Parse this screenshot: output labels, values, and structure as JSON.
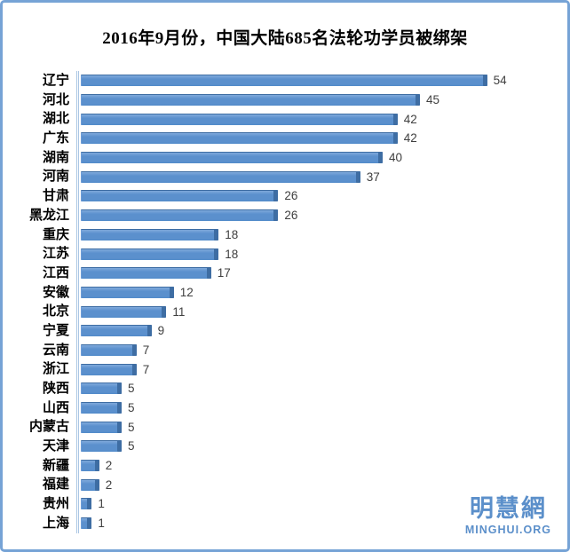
{
  "chart_data": {
    "type": "bar",
    "orientation": "horizontal",
    "title": "2016年9月份，中国大陆685名法轮功学员被绑架",
    "categories": [
      "辽宁",
      "河北",
      "湖北",
      "广东",
      "湖南",
      "河南",
      "甘肃",
      "黑龙江",
      "重庆",
      "江苏",
      "江西",
      "安徽",
      "北京",
      "宁夏",
      "云南",
      "浙江",
      "陕西",
      "山西",
      "内蒙古",
      "天津",
      "新疆",
      "福建",
      "贵州",
      "上海"
    ],
    "values": [
      54,
      45,
      42,
      42,
      40,
      37,
      26,
      26,
      18,
      18,
      17,
      12,
      11,
      9,
      7,
      7,
      5,
      5,
      5,
      5,
      2,
      2,
      1,
      1
    ],
    "xlabel": "",
    "ylabel": "",
    "xlim": [
      0,
      54
    ],
    "grid": false,
    "legend": false,
    "value_labels_shown": true,
    "bar_color": "#5B90CD",
    "bar_edge_color": "#3E6DA3",
    "axis_line_color": "#AAC6E3",
    "value_label_color": "#3F3F3F"
  },
  "watermark": {
    "chinese": "明慧網",
    "latin": "MINGHUI.ORG",
    "color": "#5B8FCA"
  },
  "frame": {
    "border_color": "#76A3D6",
    "background": "#FFFFFF"
  }
}
